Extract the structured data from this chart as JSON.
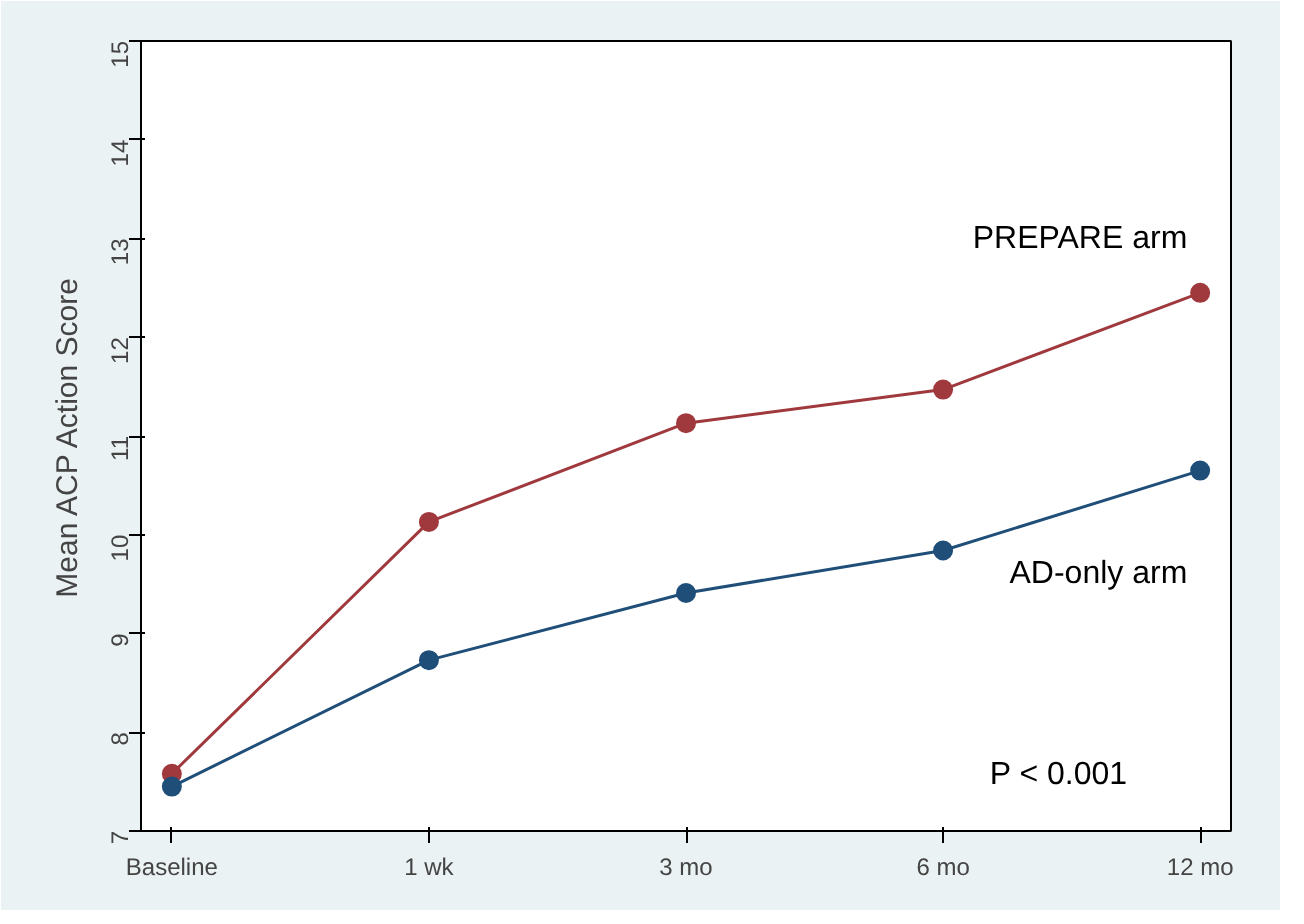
{
  "chart_data": {
    "type": "line",
    "ylabel": "Mean ACP Action Score",
    "categories": [
      "Baseline",
      "1 wk",
      "3 mo",
      "6 mo",
      "12 mo"
    ],
    "series": [
      {
        "name": "PREPARE arm",
        "color": "#a0393d",
        "values": [
          7.58,
          10.13,
          11.13,
          11.47,
          12.45
        ]
      },
      {
        "name": "AD-only arm",
        "color": "#1f4e79",
        "values": [
          7.45,
          8.73,
          9.41,
          9.84,
          10.65
        ]
      }
    ],
    "ylim": [
      7,
      15
    ],
    "yticks": [
      7,
      8,
      9,
      10,
      11,
      12,
      13,
      14,
      15
    ],
    "grid": false,
    "marker": "circle",
    "line_style": "solid",
    "legend": false,
    "annotations": [
      "P < 0.001"
    ]
  }
}
